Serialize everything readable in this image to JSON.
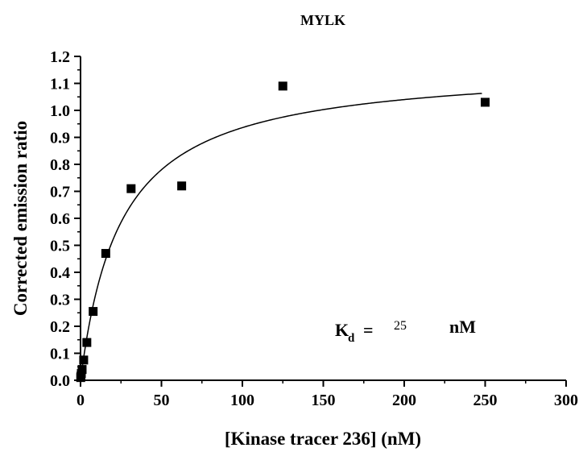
{
  "chart_data": {
    "type": "scatter",
    "title": "MYLK",
    "xlabel": "[Kinase tracer 236] (nM)",
    "ylabel": "Corrected emission ratio",
    "xlim": [
      0,
      300
    ],
    "ylim": [
      0,
      1.2
    ],
    "x_ticks": [
      "0",
      "50",
      "100",
      "150",
      "200",
      "250",
      "300"
    ],
    "y_ticks": [
      "0.0",
      "0.1",
      "0.2",
      "0.3",
      "0.4",
      "0.5",
      "0.6",
      "0.7",
      "0.8",
      "0.9",
      "1.0",
      "1.1",
      "1.2"
    ],
    "grid": false,
    "series": [
      {
        "marker": "square",
        "color": "#000000",
        "points": [
          {
            "x": 0.12,
            "y": 0.01
          },
          {
            "x": 0.24,
            "y": 0.015
          },
          {
            "x": 0.49,
            "y": 0.025
          },
          {
            "x": 0.98,
            "y": 0.04
          },
          {
            "x": 1.95,
            "y": 0.075
          },
          {
            "x": 3.9,
            "y": 0.14
          },
          {
            "x": 7.8,
            "y": 0.255
          },
          {
            "x": 15.6,
            "y": 0.47
          },
          {
            "x": 31.25,
            "y": 0.71
          },
          {
            "x": 62.5,
            "y": 0.72
          },
          {
            "x": 125,
            "y": 1.09
          },
          {
            "x": 250,
            "y": 1.03
          }
        ]
      }
    ],
    "fit": {
      "model": "one-site binding",
      "bmax": 1.17,
      "kd": 25,
      "x_range": [
        0,
        248
      ],
      "color": "#000000"
    },
    "annotation": {
      "label_main": "K",
      "label_sub": "d",
      "equals": "=",
      "value": "25",
      "unit": "nM"
    }
  }
}
